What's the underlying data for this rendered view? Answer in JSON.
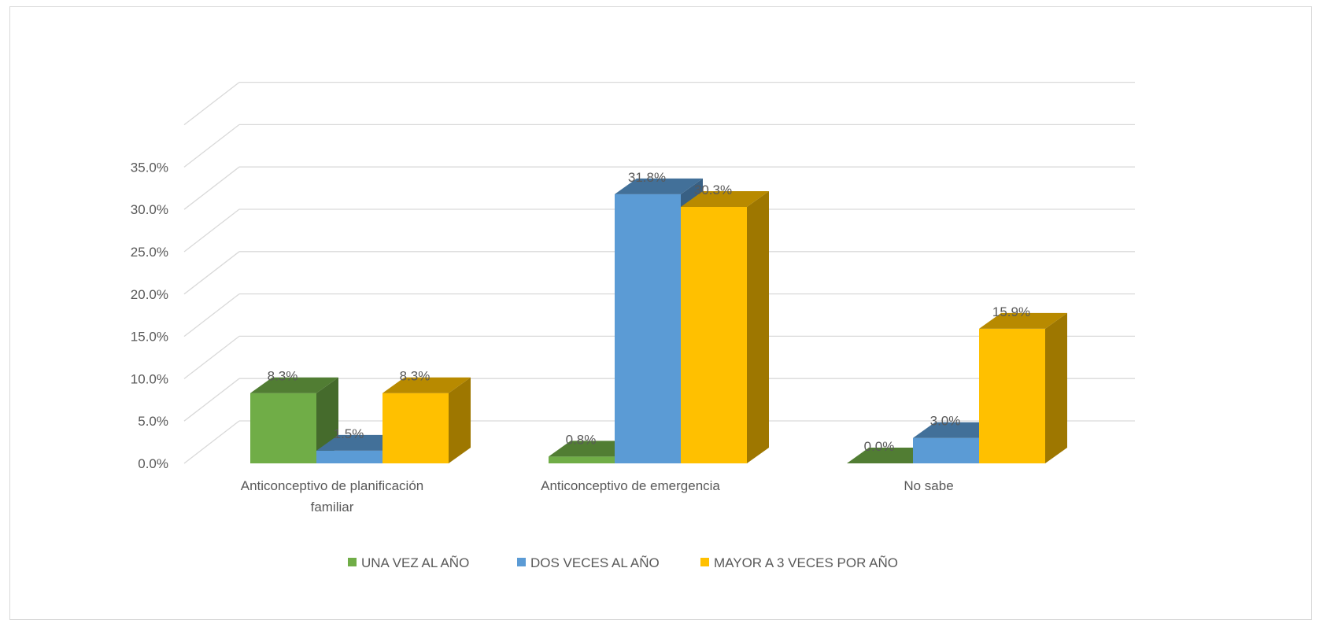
{
  "chart_data": {
    "type": "bar",
    "title": "",
    "xlabel": "",
    "ylabel": "",
    "ylim": [
      0,
      0.35
    ],
    "yticks": [
      "0.0%",
      "5.0%",
      "10.0%",
      "15.0%",
      "20.0%",
      "25.0%",
      "30.0%",
      "35.0%"
    ],
    "grid": true,
    "legend_position": "bottom",
    "categories": [
      [
        "Anticonceptivo de planificación",
        "familiar"
      ],
      [
        "Anticonceptivo de emergencia"
      ],
      [
        "No sabe"
      ]
    ],
    "series": [
      {
        "name": "UNA VEZ AL AÑO",
        "color": "#70ad47",
        "values": [
          0.083,
          0.008,
          0.0
        ],
        "labels": [
          "8.3%",
          "0.8%",
          "0.0%"
        ]
      },
      {
        "name": "DOS VECES AL AÑO",
        "color": "#5b9bd5",
        "values": [
          0.015,
          0.318,
          0.03
        ],
        "labels": [
          "1.5%",
          "31.8%",
          "3.0%"
        ]
      },
      {
        "name": "MAYOR A 3 VECES POR AÑO",
        "color": "#ffc000",
        "values": [
          0.083,
          0.303,
          0.159
        ],
        "labels": [
          "8.3%",
          "30.3%",
          "15.9%"
        ]
      }
    ]
  }
}
